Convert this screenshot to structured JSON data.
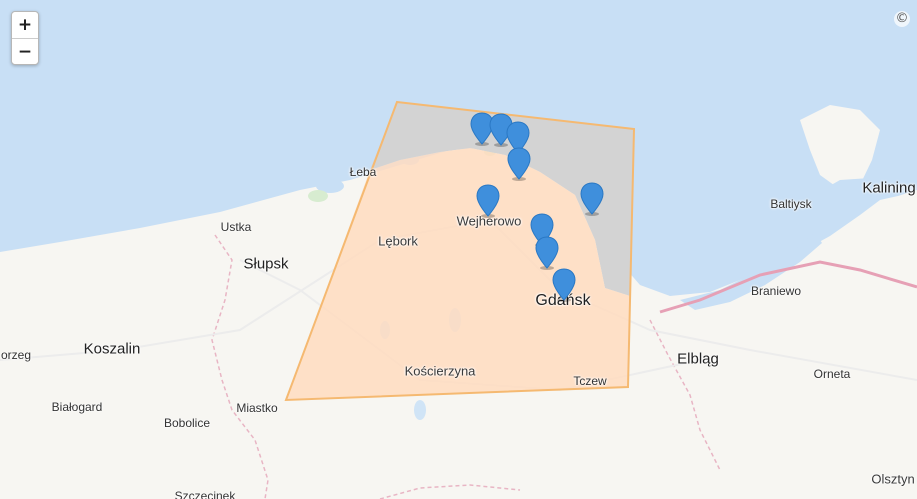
{
  "controls": {
    "zoom_in": "+",
    "zoom_out": "−",
    "attribution": "©"
  },
  "labels": {
    "gdansk": "Gdańsk",
    "wejherowo": "Wejherowo",
    "lebork": "Lębork",
    "leba": "Łeba",
    "ustka": "Ustka",
    "slupsk": "Słupsk",
    "koszalin": "Koszalin",
    "kolobrzeg": "orzeg",
    "bialogard": "Białogard",
    "bobolice": "Bobolice",
    "miastko": "Miastko",
    "koscierzyna": "Kościerzyna",
    "tczew": "Tczew",
    "elblag": "Elbląg",
    "braniewo": "Braniewo",
    "baltiysk": "Baltiysk",
    "kaliningrad": "Kalining",
    "orneta": "Orneta",
    "olsztyn": "Olsztyn",
    "szczecinek": "Szczecinek"
  },
  "colors": {
    "sea": "#c8dff5",
    "land": "#f7f6f2",
    "polygon_fill": "#ffdcc0",
    "polygon_sea_fill": "#d3d3d3",
    "polygon_stroke": "#f5b971",
    "marker": "#3f8fdc",
    "border": "#e6a0b5"
  },
  "map": {
    "selection_polygon": {
      "shape": "quadrilateral"
    },
    "markers_count": 9,
    "marker_icon": "map-pin-icon"
  }
}
